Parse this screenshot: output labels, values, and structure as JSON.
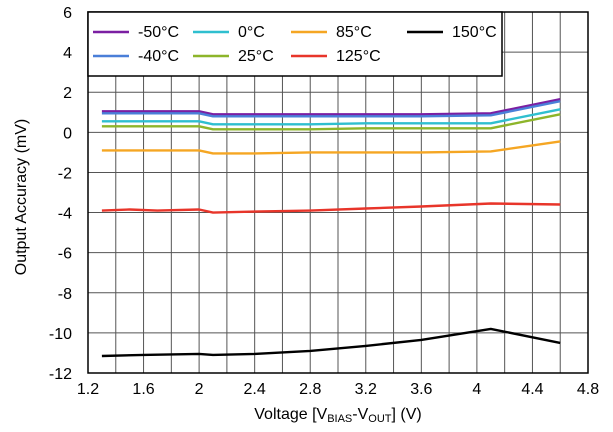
{
  "chart_data": {
    "type": "line",
    "xlabel_main": "Voltage [V",
    "xlabel_sub1": "BIAS",
    "xlabel_mid": "-V",
    "xlabel_sub2": "OUT",
    "xlabel_tail": "] (V)",
    "ylabel": "Output Accuracy (mV)",
    "xlim": [
      1.2,
      4.8
    ],
    "ylim": [
      -12,
      6
    ],
    "xticks": [
      1.2,
      1.6,
      2.0,
      2.4,
      2.8,
      3.2,
      3.6,
      4.0,
      4.4,
      4.8
    ],
    "xtick_labels": [
      "1.2",
      "1.6",
      "2",
      "2.4",
      "2.8",
      "3.2",
      "3.6",
      "4",
      "4.4",
      "4.8"
    ],
    "yticks": [
      -12,
      -10,
      -8,
      -6,
      -4,
      -2,
      0,
      2,
      4,
      6
    ],
    "ytick_labels": [
      "-12",
      "-10",
      "-8",
      "-6",
      "-4",
      "-2",
      "0",
      "2",
      "4",
      "6"
    ],
    "grid": true,
    "legend_position": "top",
    "series": [
      {
        "name": "-50°C",
        "color": "#7b1fa2",
        "x": [
          1.3,
          1.5,
          1.7,
          2.0,
          2.1,
          2.4,
          2.8,
          3.2,
          3.6,
          4.1,
          4.6
        ],
        "y": [
          1.05,
          1.05,
          1.05,
          1.05,
          0.9,
          0.9,
          0.9,
          0.9,
          0.9,
          0.95,
          1.65
        ]
      },
      {
        "name": "-40°C",
        "color": "#4a7fd8",
        "x": [
          1.3,
          1.5,
          1.7,
          2.0,
          2.1,
          2.4,
          2.8,
          3.2,
          3.6,
          4.1,
          4.6
        ],
        "y": [
          0.95,
          0.95,
          0.95,
          0.95,
          0.8,
          0.8,
          0.8,
          0.8,
          0.8,
          0.85,
          1.55
        ]
      },
      {
        "name": "0°C",
        "color": "#2fbfcf",
        "x": [
          1.3,
          1.5,
          1.7,
          2.0,
          2.1,
          2.4,
          2.8,
          3.2,
          3.6,
          4.1,
          4.6
        ],
        "y": [
          0.55,
          0.55,
          0.55,
          0.55,
          0.4,
          0.4,
          0.4,
          0.45,
          0.45,
          0.45,
          1.15
        ]
      },
      {
        "name": "25°C",
        "color": "#8db52a",
        "x": [
          1.3,
          1.5,
          1.7,
          2.0,
          2.1,
          2.4,
          2.8,
          3.2,
          3.6,
          4.1,
          4.6
        ],
        "y": [
          0.3,
          0.3,
          0.3,
          0.3,
          0.15,
          0.15,
          0.15,
          0.2,
          0.2,
          0.2,
          0.9
        ]
      },
      {
        "name": "85°C",
        "color": "#f5a623",
        "x": [
          1.3,
          1.5,
          1.7,
          2.0,
          2.1,
          2.4,
          2.8,
          3.2,
          3.6,
          4.1,
          4.6
        ],
        "y": [
          -0.9,
          -0.9,
          -0.9,
          -0.9,
          -1.05,
          -1.05,
          -1.0,
          -1.0,
          -1.0,
          -0.95,
          -0.45
        ]
      },
      {
        "name": "125°C",
        "color": "#e8352a",
        "x": [
          1.3,
          1.5,
          1.7,
          2.0,
          2.1,
          2.4,
          2.8,
          3.2,
          3.6,
          4.1,
          4.6
        ],
        "y": [
          -3.9,
          -3.85,
          -3.9,
          -3.85,
          -4.0,
          -3.95,
          -3.9,
          -3.8,
          -3.7,
          -3.55,
          -3.6
        ]
      },
      {
        "name": "150°C",
        "color": "#000000",
        "x": [
          1.3,
          1.6,
          2.0,
          2.1,
          2.4,
          2.8,
          3.2,
          3.6,
          4.1,
          4.6
        ],
        "y": [
          -11.15,
          -11.1,
          -11.05,
          -11.1,
          -11.05,
          -10.9,
          -10.65,
          -10.35,
          -9.8,
          -10.5
        ]
      }
    ]
  }
}
